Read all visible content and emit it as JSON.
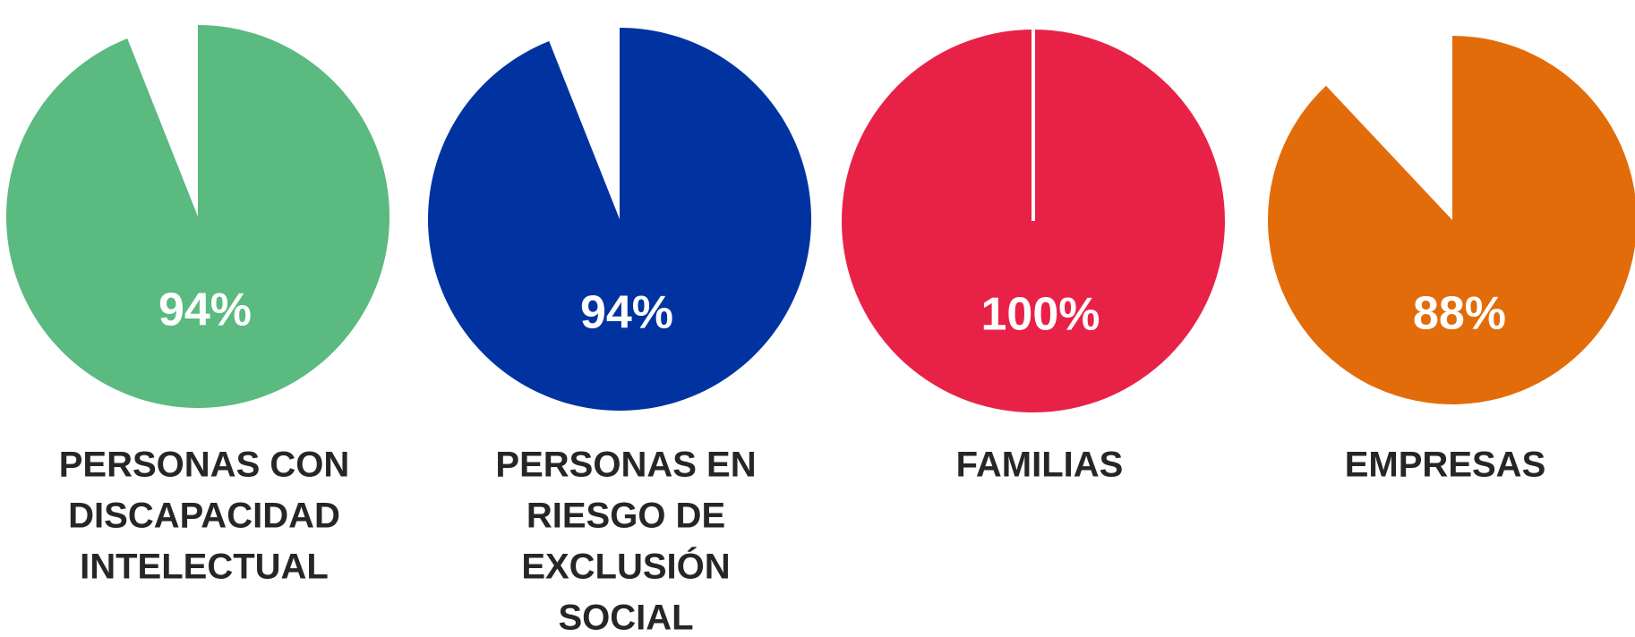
{
  "chart_data": [
    {
      "type": "pie",
      "values": [
        94
      ],
      "value_labels": [
        "94%"
      ],
      "color": "#5aba80",
      "label": [
        "PERSONAS CON",
        "DISCAPACIDAD",
        "INTELECTUAL"
      ]
    },
    {
      "type": "pie",
      "values": [
        94
      ],
      "value_labels": [
        "94%"
      ],
      "color": "#0033a0",
      "label": [
        "PERSONAS EN",
        "RIESGO DE",
        "EXCLUSIÓN",
        "SOCIAL"
      ]
    },
    {
      "type": "pie",
      "values": [
        100
      ],
      "value_labels": [
        "100%"
      ],
      "color": "#e82247",
      "label": [
        "FAMILIAS"
      ]
    },
    {
      "type": "pie",
      "values": [
        88
      ],
      "value_labels": [
        "88%"
      ],
      "color": "#e36c0a",
      "label": [
        "EMPRESAS"
      ]
    }
  ]
}
